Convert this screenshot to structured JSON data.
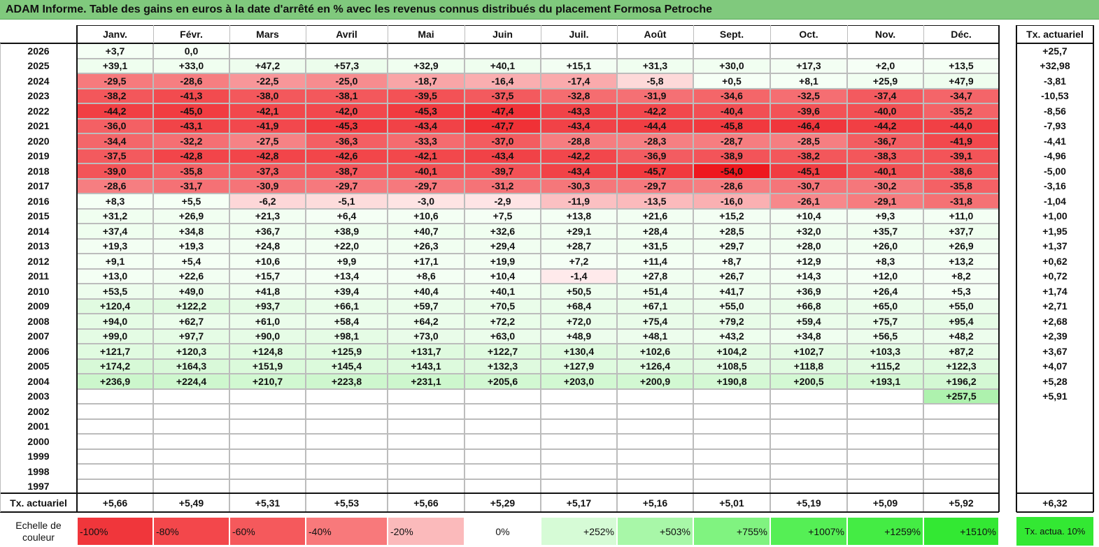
{
  "title": "ADAM Informe. Table des gains en euros à la date d'arrêté en % avec les revenus connus distribués du placement Formosa Petroche",
  "months": [
    "Janv.",
    "Févr.",
    "Mars",
    "Avril",
    "Mai",
    "Juin",
    "Juil.",
    "Août",
    "Sept.",
    "Oct.",
    "Nov.",
    "Déc."
  ],
  "rate_header": "Tx. actuariel",
  "rows": [
    {
      "year": "2026",
      "values": [
        "+3,7",
        "0,0",
        "",
        "",
        "",
        "",
        "",
        "",
        "",
        "",
        "",
        ""
      ],
      "rate": "+25,7"
    },
    {
      "year": "2025",
      "values": [
        "+39,1",
        "+33,0",
        "+47,2",
        "+57,3",
        "+32,9",
        "+40,1",
        "+15,1",
        "+31,3",
        "+30,0",
        "+17,3",
        "+2,0",
        "+13,5"
      ],
      "rate": "+32,98"
    },
    {
      "year": "2024",
      "values": [
        "-29,5",
        "-28,6",
        "-22,5",
        "-25,0",
        "-18,7",
        "-16,4",
        "-17,4",
        "-5,8",
        "+0,5",
        "+8,1",
        "+25,9",
        "+47,9"
      ],
      "rate": "-3,81"
    },
    {
      "year": "2023",
      "values": [
        "-38,2",
        "-41,3",
        "-38,0",
        "-38,1",
        "-39,5",
        "-37,5",
        "-32,8",
        "-31,9",
        "-34,6",
        "-32,5",
        "-37,4",
        "-34,7"
      ],
      "rate": "-10,53"
    },
    {
      "year": "2022",
      "values": [
        "-44,2",
        "-45,0",
        "-42,1",
        "-42,0",
        "-45,3",
        "-47,4",
        "-43,3",
        "-42,2",
        "-40,4",
        "-39,6",
        "-40,0",
        "-35,2"
      ],
      "rate": "-8,56"
    },
    {
      "year": "2021",
      "values": [
        "-36,0",
        "-43,1",
        "-41,9",
        "-45,3",
        "-43,4",
        "-47,7",
        "-43,4",
        "-44,4",
        "-45,8",
        "-46,4",
        "-44,2",
        "-44,0"
      ],
      "rate": "-7,93"
    },
    {
      "year": "2020",
      "values": [
        "-34,4",
        "-32,2",
        "-27,5",
        "-36,3",
        "-33,3",
        "-37,0",
        "-28,8",
        "-28,3",
        "-28,7",
        "-28,5",
        "-36,7",
        "-41,9"
      ],
      "rate": "-4,41"
    },
    {
      "year": "2019",
      "values": [
        "-37,5",
        "-42,8",
        "-42,8",
        "-42,6",
        "-42,1",
        "-43,4",
        "-42,2",
        "-36,9",
        "-38,9",
        "-38,2",
        "-38,3",
        "-39,1"
      ],
      "rate": "-4,96"
    },
    {
      "year": "2018",
      "values": [
        "-39,0",
        "-35,8",
        "-37,3",
        "-38,7",
        "-40,1",
        "-39,7",
        "-43,4",
        "-45,7",
        "-54,0",
        "-45,1",
        "-40,1",
        "-38,6"
      ],
      "rate": "-5,00"
    },
    {
      "year": "2017",
      "values": [
        "-28,6",
        "-31,7",
        "-30,9",
        "-29,7",
        "-29,7",
        "-31,2",
        "-30,3",
        "-29,7",
        "-28,6",
        "-30,7",
        "-30,2",
        "-35,8"
      ],
      "rate": "-3,16"
    },
    {
      "year": "2016",
      "values": [
        "+8,3",
        "+5,5",
        "-6,2",
        "-5,1",
        "-3,0",
        "-2,9",
        "-11,9",
        "-13,5",
        "-16,0",
        "-26,1",
        "-29,1",
        "-31,8"
      ],
      "rate": "-1,04"
    },
    {
      "year": "2015",
      "values": [
        "+31,2",
        "+26,9",
        "+21,3",
        "+6,4",
        "+10,6",
        "+7,5",
        "+13,8",
        "+21,6",
        "+15,2",
        "+10,4",
        "+9,3",
        "+11,0"
      ],
      "rate": "+1,00"
    },
    {
      "year": "2014",
      "values": [
        "+37,4",
        "+34,8",
        "+36,7",
        "+38,9",
        "+40,7",
        "+32,6",
        "+29,1",
        "+28,4",
        "+28,5",
        "+32,0",
        "+35,7",
        "+37,7"
      ],
      "rate": "+1,95"
    },
    {
      "year": "2013",
      "values": [
        "+19,3",
        "+19,3",
        "+24,8",
        "+22,0",
        "+26,3",
        "+29,4",
        "+28,7",
        "+31,5",
        "+29,7",
        "+28,0",
        "+26,0",
        "+26,9"
      ],
      "rate": "+1,37"
    },
    {
      "year": "2012",
      "values": [
        "+9,1",
        "+5,4",
        "+10,6",
        "+9,9",
        "+17,1",
        "+19,9",
        "+7,2",
        "+11,4",
        "+8,7",
        "+12,9",
        "+8,3",
        "+13,2"
      ],
      "rate": "+0,62"
    },
    {
      "year": "2011",
      "values": [
        "+13,0",
        "+22,6",
        "+15,7",
        "+13,4",
        "+8,6",
        "+10,4",
        "-1,4",
        "+27,8",
        "+26,7",
        "+14,3",
        "+12,0",
        "+8,2"
      ],
      "rate": "+0,72"
    },
    {
      "year": "2010",
      "values": [
        "+53,5",
        "+49,0",
        "+41,8",
        "+39,4",
        "+40,4",
        "+40,1",
        "+50,5",
        "+51,4",
        "+41,7",
        "+36,9",
        "+26,4",
        "+5,3"
      ],
      "rate": "+1,74"
    },
    {
      "year": "2009",
      "values": [
        "+120,4",
        "+122,2",
        "+93,7",
        "+66,1",
        "+59,7",
        "+70,5",
        "+68,4",
        "+67,1",
        "+55,0",
        "+66,8",
        "+65,0",
        "+55,0"
      ],
      "rate": "+2,71"
    },
    {
      "year": "2008",
      "values": [
        "+94,0",
        "+62,7",
        "+61,0",
        "+58,4",
        "+64,2",
        "+72,2",
        "+72,0",
        "+75,4",
        "+79,2",
        "+59,4",
        "+75,7",
        "+95,4"
      ],
      "rate": "+2,68"
    },
    {
      "year": "2007",
      "values": [
        "+99,0",
        "+97,7",
        "+90,0",
        "+98,1",
        "+73,0",
        "+63,0",
        "+48,9",
        "+48,1",
        "+43,2",
        "+34,8",
        "+56,5",
        "+48,2"
      ],
      "rate": "+2,39"
    },
    {
      "year": "2006",
      "values": [
        "+121,7",
        "+120,3",
        "+124,8",
        "+125,9",
        "+131,7",
        "+122,7",
        "+130,4",
        "+102,6",
        "+104,2",
        "+102,7",
        "+103,3",
        "+87,2"
      ],
      "rate": "+3,67"
    },
    {
      "year": "2005",
      "values": [
        "+174,2",
        "+164,3",
        "+151,9",
        "+145,4",
        "+143,1",
        "+132,3",
        "+127,9",
        "+126,4",
        "+108,5",
        "+118,8",
        "+115,2",
        "+122,3"
      ],
      "rate": "+4,07"
    },
    {
      "year": "2004",
      "values": [
        "+236,9",
        "+224,4",
        "+210,7",
        "+223,8",
        "+231,1",
        "+205,6",
        "+203,0",
        "+200,9",
        "+190,8",
        "+200,5",
        "+193,1",
        "+196,2"
      ],
      "rate": "+5,28"
    },
    {
      "year": "2003",
      "values": [
        "",
        "",
        "",
        "",
        "",
        "",
        "",
        "",
        "",
        "",
        "",
        "+257,5"
      ],
      "rate": "+5,91"
    },
    {
      "year": "2002",
      "values": [
        "",
        "",
        "",
        "",
        "",
        "",
        "",
        "",
        "",
        "",
        "",
        ""
      ],
      "rate": ""
    },
    {
      "year": "2001",
      "values": [
        "",
        "",
        "",
        "",
        "",
        "",
        "",
        "",
        "",
        "",
        "",
        ""
      ],
      "rate": ""
    },
    {
      "year": "2000",
      "values": [
        "",
        "",
        "",
        "",
        "",
        "",
        "",
        "",
        "",
        "",
        "",
        ""
      ],
      "rate": ""
    },
    {
      "year": "1999",
      "values": [
        "",
        "",
        "",
        "",
        "",
        "",
        "",
        "",
        "",
        "",
        "",
        ""
      ],
      "rate": ""
    },
    {
      "year": "1998",
      "values": [
        "",
        "",
        "",
        "",
        "",
        "",
        "",
        "",
        "",
        "",
        "",
        ""
      ],
      "rate": ""
    },
    {
      "year": "1997",
      "values": [
        "",
        "",
        "",
        "",
        "",
        "",
        "",
        "",
        "",
        "",
        "",
        ""
      ],
      "rate": ""
    }
  ],
  "summary": {
    "label": "Tx. actuariel",
    "values": [
      "+5,66",
      "+5,49",
      "+5,31",
      "+5,53",
      "+5,66",
      "+5,29",
      "+5,17",
      "+5,16",
      "+5,01",
      "+5,19",
      "+5,09",
      "+5,92"
    ],
    "rate": "+6,32"
  },
  "scale": {
    "label": "Echelle de couleur",
    "items": [
      {
        "text": "-100%",
        "color": "#f0363b"
      },
      {
        "text": "-80%",
        "color": "#f3474b"
      },
      {
        "text": "-60%",
        "color": "#f5595c"
      },
      {
        "text": "-40%",
        "color": "#f8797b"
      },
      {
        "text": "-20%",
        "color": "#fbbabb"
      },
      {
        "text": "0%",
        "color": "#ffffff"
      },
      {
        "text": "+252%",
        "color": "#d6fbd6"
      },
      {
        "text": "+503%",
        "color": "#a8f7a8"
      },
      {
        "text": "+755%",
        "color": "#80f380"
      },
      {
        "text": "+1007%",
        "color": "#55ef55"
      },
      {
        "text": "+1259%",
        "color": "#44ec44"
      },
      {
        "text": "+1510%",
        "color": "#33e833"
      }
    ],
    "rate_label": "Tx. actua. 10%",
    "rate_color": "#33e833"
  },
  "colors": {
    "title_bg": "#80c97d",
    "neg_strong": "#ee3a3f",
    "pos_light": "#f0fff0",
    "pos_mid": "#cdf7cd"
  }
}
